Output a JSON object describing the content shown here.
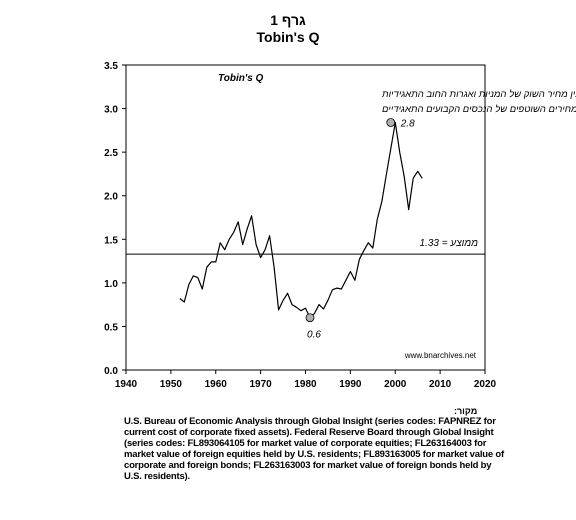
{
  "header": {
    "graph_label": "גרף 1",
    "title": "Tobin's Q"
  },
  "chart_data": {
    "type": "line",
    "xlim": [
      1940,
      2020
    ],
    "ylim": [
      0.0,
      3.5
    ],
    "x_ticks": [
      "1940",
      "1950",
      "1960",
      "1970",
      "1980",
      "1990",
      "2000",
      "2010",
      "2020"
    ],
    "y_ticks": [
      "0.0",
      "0.5",
      "1.0",
      "1.5",
      "2.0",
      "2.5",
      "3.0",
      "3.5"
    ],
    "grid": false,
    "series": [
      {
        "name": "Tobin's Q",
        "color": "#000000",
        "x": [
          1952,
          1953,
          1954,
          1955,
          1956,
          1957,
          1958,
          1959,
          1960,
          1961,
          1962,
          1963,
          1964,
          1965,
          1966,
          1967,
          1968,
          1969,
          1970,
          1971,
          1972,
          1973,
          1974,
          1975,
          1976,
          1977,
          1978,
          1979,
          1980,
          1981,
          1982,
          1983,
          1984,
          1985,
          1986,
          1987,
          1988,
          1989,
          1990,
          1991,
          1992,
          1993,
          1994,
          1995,
          1996,
          1997,
          1998,
          1999,
          2000,
          2001,
          2002,
          2003,
          2004,
          2005,
          2006
        ],
        "values": [
          0.82,
          0.78,
          0.98,
          1.08,
          1.06,
          0.93,
          1.18,
          1.24,
          1.24,
          1.46,
          1.38,
          1.5,
          1.58,
          1.7,
          1.44,
          1.62,
          1.77,
          1.44,
          1.29,
          1.38,
          1.54,
          1.18,
          0.69,
          0.8,
          0.88,
          0.75,
          0.72,
          0.68,
          0.71,
          0.6,
          0.65,
          0.75,
          0.7,
          0.8,
          0.92,
          0.94,
          0.93,
          1.03,
          1.13,
          1.03,
          1.27,
          1.37,
          1.46,
          1.4,
          1.73,
          1.93,
          2.24,
          2.54,
          2.84,
          2.5,
          2.22,
          1.84,
          2.2,
          2.28,
          2.2
        ]
      }
    ],
    "reference_line": {
      "y": 1.33,
      "label": "1.33 = ממוצע"
    },
    "annotations": [
      {
        "x": 1999,
        "y": 2.84,
        "label": "2.8"
      },
      {
        "x": 1981,
        "y": 0.6,
        "label": "0.6"
      }
    ],
    "legend": {
      "title": "Tobin's Q",
      "lines": [
        "היחס בין מחיר השוק של המניות ואגרות החוב התאגידיות",
        "ובין המחירים השוטפים של הנכסים הקבועים התאגידיים"
      ]
    },
    "watermark": "www.bnarchives.net",
    "marker_fill": "#b0b0b0"
  },
  "source": {
    "label": "מקור:",
    "text": "U.S. Bureau of Economic Analysis through Global Insight (series codes: FAPNREZ for current cost of corporate fixed assets). Federal Reserve Board through Global Insight (series codes: FL893064105 for market value of corporate equities; FL263164003 for market value of foreign equities held by U.S. residents; FL893163005 for market value of corporate and foreign bonds; FL263163003 for market value of foreign bonds held by U.S. residents)."
  }
}
